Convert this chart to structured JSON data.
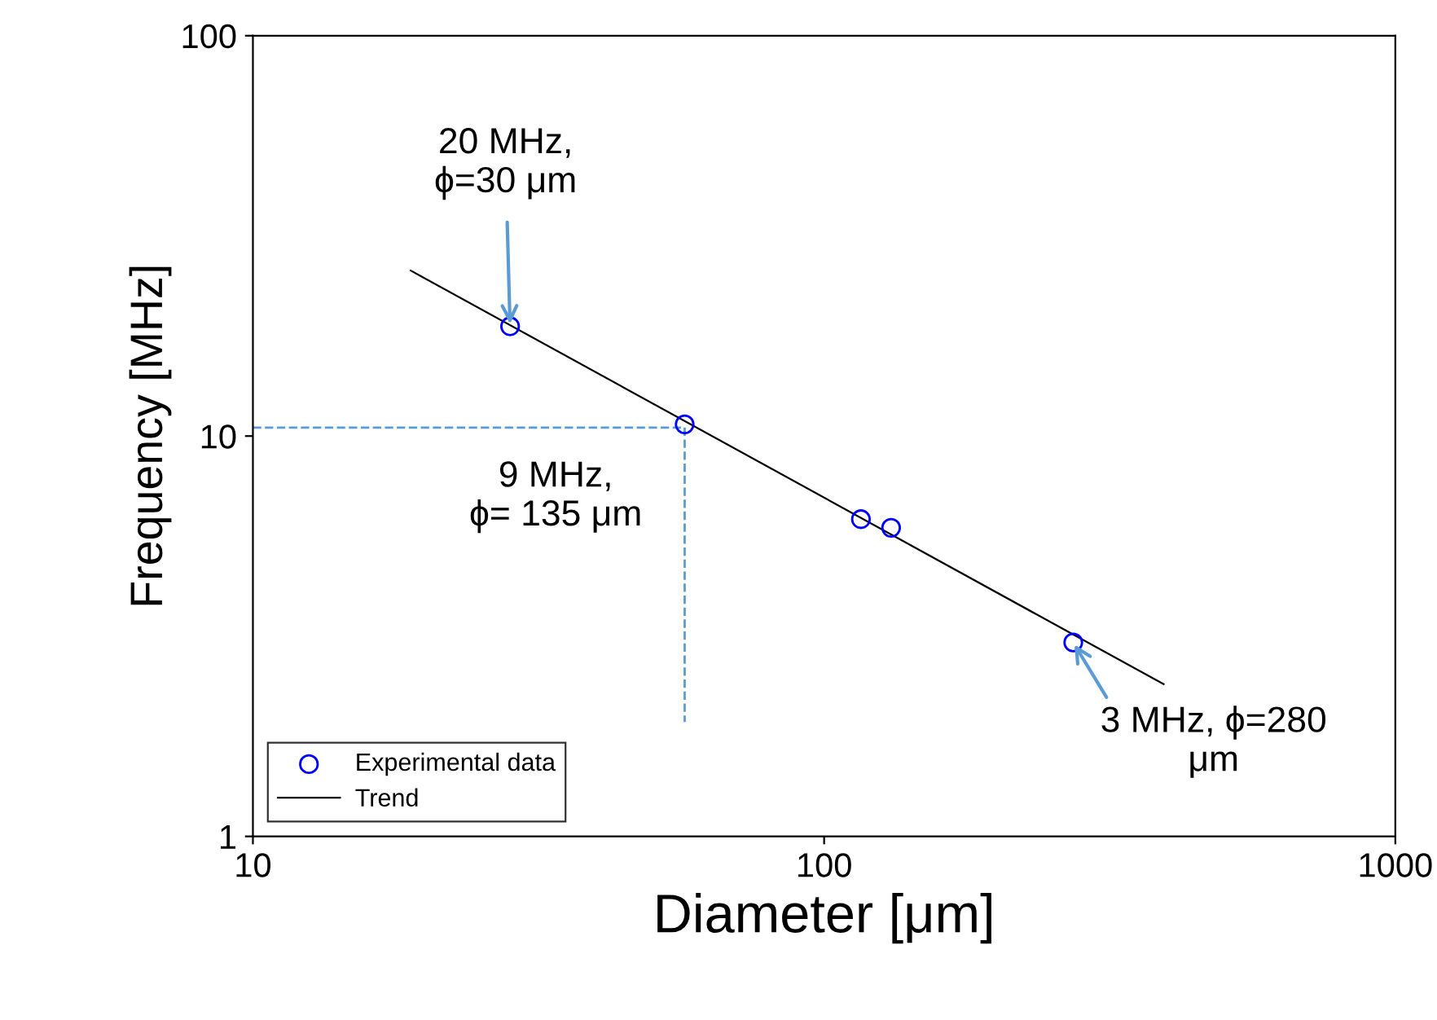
{
  "chart_data": {
    "type": "scatter",
    "xlabel": "Diameter [μm]",
    "ylabel": "Frequency [MHz]",
    "log": "xy",
    "xlim": [
      10,
      1000
    ],
    "ylim": [
      1,
      100
    ],
    "xticks": [
      10,
      100,
      1000
    ],
    "yticks": [
      1,
      10,
      100
    ],
    "grid": false,
    "legend": "bottom left",
    "series": [
      {
        "name": "Experimental data",
        "color": "#0000ff",
        "marker": "circle",
        "x": [
          28.2,
          57,
          116,
          131,
          273
        ],
        "values": [
          18.8,
          10.7,
          6.2,
          5.9,
          3.05
        ]
      },
      {
        "name": "Trend",
        "type": "line",
        "color": "#000000",
        "marker": "none",
        "line_style": "solid",
        "x": [
          18.9,
          393
        ],
        "values": [
          25.9,
          2.4
        ]
      },
      {
        "type": "line",
        "color": "#5b9bd5",
        "marker": "none",
        "line_style": "dashed",
        "x": [
          10,
          57
        ],
        "values": [
          10.5,
          10.5
        ]
      },
      {
        "type": "line",
        "color": "#5b9bd5",
        "marker": "none",
        "line_style": "dashed",
        "x": [
          57,
          57
        ],
        "values": [
          10.5,
          1.93
        ]
      }
    ],
    "annotations": [
      {
        "text": "20 MHz,\nϕ=30 μm",
        "x": 28.2,
        "y": 18.8
      },
      {
        "text": "9 MHz,\nϕ= 135 μm",
        "x": 57,
        "y": 10.7
      },
      {
        "text": "3 MHz, ϕ=280\nμm",
        "x": 273,
        "y": 3.05
      }
    ]
  }
}
